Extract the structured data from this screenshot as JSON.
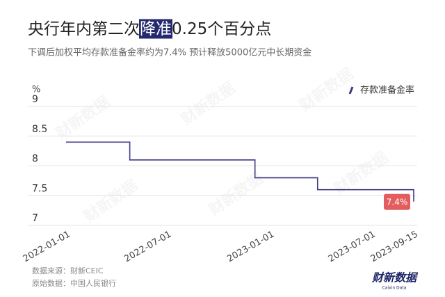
{
  "chart_data": {
    "type": "line",
    "step": "post",
    "title": [
      "央行年内第二次",
      "降准",
      "0.25个百分点"
    ],
    "title_highlight": 1,
    "subtitle": "下调后加权平均存款准备金率约为7.4%  预计释放5000亿元中长期资金",
    "y_label": "%",
    "x": [
      "2022-01-01",
      "2022-04-25",
      "2022-12-05",
      "2023-03-27",
      "2023-09-15"
    ],
    "xlim": [
      "2022-01-01",
      "2023-09-15"
    ],
    "xticks": [
      "2022-01-01",
      "2022-07-01",
      "2023-01-01",
      "2023-07-01",
      "2023-09-15"
    ],
    "ylim": [
      7,
      9
    ],
    "yticks": [
      7,
      7.5,
      8,
      8.5,
      9
    ],
    "grid": true,
    "legend": "top-right",
    "series": [
      {
        "name": "存款准备金率",
        "color": "#3f3c82",
        "values": [
          8.4,
          8.1,
          7.8,
          7.6,
          7.4
        ],
        "value_labels": [
          null,
          null,
          null,
          null,
          "7.4%"
        ]
      }
    ],
    "label_color": "#e35d5f",
    "source": [
      "数据来源：财新CEIC",
      "原始数据：中国人民银行"
    ],
    "watermark": "财新数据",
    "logo": {
      "text": "财新数据",
      "sub": "Caixin Data"
    }
  }
}
